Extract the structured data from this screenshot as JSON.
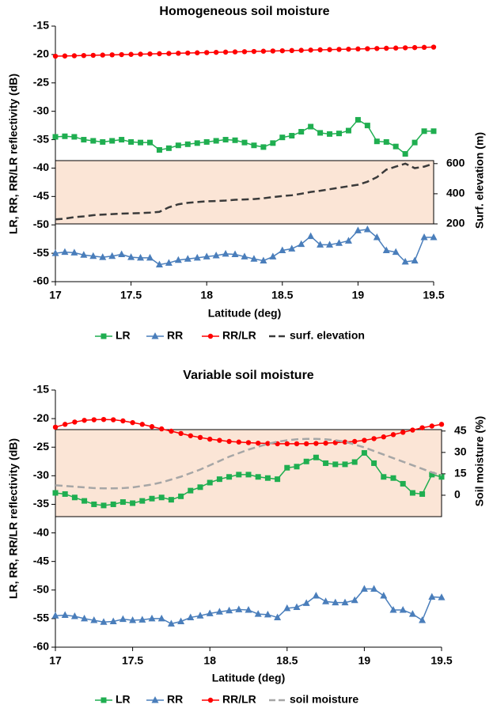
{
  "chart_data": [
    {
      "type": "line",
      "title": "Homogeneous soil moisture",
      "x_label": "Latitude (deg)",
      "y_label": "LR, RR, RR/LR reflectivity (dB)",
      "y2_label": "Surf. elevation (m)",
      "x": [
        17,
        17.0625,
        17.125,
        17.1875,
        17.25,
        17.3125,
        17.375,
        17.4375,
        17.5,
        17.5625,
        17.625,
        17.6875,
        17.75,
        17.8125,
        17.875,
        17.9375,
        18,
        18.0625,
        18.125,
        18.1875,
        18.25,
        18.3125,
        18.375,
        18.4375,
        18.5,
        18.5625,
        18.625,
        18.6875,
        18.75,
        18.8125,
        18.875,
        18.9375,
        19,
        19.0625,
        19.125,
        19.1875,
        19.25,
        19.3125,
        19.375,
        19.4375,
        19.5
      ],
      "xlim": [
        17,
        19.5
      ],
      "xticks": [
        17,
        17.5,
        18,
        18.5,
        19,
        19.5
      ],
      "ylim": [
        -60,
        -15
      ],
      "yticks": [
        -15,
        -20,
        -25,
        -30,
        -35,
        -40,
        -45,
        -50,
        -55,
        -60
      ],
      "y2lim": [
        200,
        620
      ],
      "y2ticks": [
        200,
        400,
        600
      ],
      "series": [
        {
          "name": "LR",
          "color": "#1fae50",
          "marker": "square",
          "values": [
            -34.5,
            -34.4,
            -34.5,
            -35,
            -35.2,
            -35.4,
            -35.2,
            -35,
            -35.4,
            -35.5,
            -35.5,
            -36.8,
            -36.5,
            -36,
            -35.8,
            -35.6,
            -35.4,
            -35.2,
            -35,
            -35.1,
            -35.5,
            -36,
            -36.3,
            -35.6,
            -34.6,
            -34.3,
            -33.6,
            -32.7,
            -33.8,
            -34,
            -33.9,
            -33.4,
            -31.5,
            -32.5,
            -35.3,
            -35.4,
            -36.2,
            -37.5,
            -35.5,
            -33.5,
            -33.5
          ]
        },
        {
          "name": "RR",
          "color": "#4a7ebb",
          "marker": "triangle",
          "values": [
            -55,
            -54.8,
            -54.9,
            -55.3,
            -55.5,
            -55.7,
            -55.5,
            -55.2,
            -55.7,
            -55.8,
            -55.8,
            -57,
            -56.7,
            -56.2,
            -56,
            -55.8,
            -55.6,
            -55.4,
            -55.1,
            -55.2,
            -55.6,
            -56,
            -56.3,
            -55.6,
            -54.5,
            -54.2,
            -53.4,
            -52,
            -53.5,
            -53.5,
            -53.2,
            -52.8,
            -51,
            -50.8,
            -52.2,
            -54.5,
            -54.8,
            -56.5,
            -56.3,
            -52.2,
            -52.2
          ]
        },
        {
          "name": "RR/LR",
          "color": "#ff0000",
          "marker": "circle",
          "values": [
            -20.3,
            -20.26,
            -20.22,
            -20.18,
            -20.14,
            -20.1,
            -20.06,
            -20.02,
            -19.98,
            -19.94,
            -19.9,
            -19.86,
            -19.82,
            -19.78,
            -19.74,
            -19.7,
            -19.66,
            -19.62,
            -19.58,
            -19.54,
            -19.5,
            -19.46,
            -19.42,
            -19.38,
            -19.34,
            -19.3,
            -19.26,
            -19.22,
            -19.18,
            -19.14,
            -19.1,
            -19.06,
            -19.02,
            -18.98,
            -18.94,
            -18.9,
            -18.86,
            -18.82,
            -18.78,
            -18.74,
            -18.7
          ]
        },
        {
          "name": "surf. elevation",
          "color": "#3a3a3a",
          "dash": true,
          "axis": "y2",
          "values": [
            230,
            235,
            245,
            250,
            258,
            262,
            265,
            268,
            270,
            272,
            275,
            280,
            310,
            330,
            340,
            345,
            350,
            352,
            355,
            360,
            362,
            365,
            370,
            378,
            385,
            390,
            400,
            412,
            420,
            430,
            440,
            450,
            460,
            480,
            510,
            560,
            580,
            600,
            570,
            580,
            600
          ]
        }
      ]
    },
    {
      "type": "line",
      "title": "Variable soil moisture",
      "x_label": "Latitude (deg)",
      "y_label": "LR, RR, RR/LR reflectivity (dB)",
      "y2_label": "Soil moisture (%)",
      "x": [
        17,
        17.0625,
        17.125,
        17.1875,
        17.25,
        17.3125,
        17.375,
        17.4375,
        17.5,
        17.5625,
        17.625,
        17.6875,
        17.75,
        17.8125,
        17.875,
        17.9375,
        18,
        18.0625,
        18.125,
        18.1875,
        18.25,
        18.3125,
        18.375,
        18.4375,
        18.5,
        18.5625,
        18.625,
        18.6875,
        18.75,
        18.8125,
        18.875,
        18.9375,
        19,
        19.0625,
        19.125,
        19.1875,
        19.25,
        19.3125,
        19.375,
        19.4375,
        19.5
      ],
      "xlim": [
        17,
        19.5
      ],
      "xticks": [
        17,
        17.5,
        18,
        18.5,
        19,
        19.5
      ],
      "ylim": [
        -60,
        -15
      ],
      "yticks": [
        -15,
        -20,
        -25,
        -30,
        -35,
        -40,
        -45,
        -50,
        -55,
        -60
      ],
      "y2lim": [
        -15,
        46
      ],
      "y2ticks": [
        0,
        15,
        30,
        45
      ],
      "series": [
        {
          "name": "LR",
          "color": "#1fae50",
          "marker": "square",
          "values": [
            -33,
            -33.2,
            -33.8,
            -34.4,
            -35,
            -35.2,
            -35,
            -34.6,
            -34.8,
            -34.4,
            -34,
            -33.8,
            -34.2,
            -33.6,
            -32.6,
            -32,
            -31.2,
            -30.6,
            -30.2,
            -29.8,
            -29.8,
            -30.2,
            -30.4,
            -30.6,
            -28.6,
            -28.4,
            -27.5,
            -26.8,
            -27.8,
            -28,
            -28,
            -27.6,
            -26,
            -27.8,
            -30.2,
            -30.4,
            -31.4,
            -33,
            -33.2,
            -29.8,
            -30.2
          ]
        },
        {
          "name": "RR",
          "color": "#4a7ebb",
          "marker": "triangle",
          "values": [
            -54.5,
            -54.4,
            -54.6,
            -55,
            -55.3,
            -55.6,
            -55.5,
            -55.1,
            -55.3,
            -55.2,
            -55,
            -55,
            -55.9,
            -55.5,
            -54.8,
            -54.5,
            -54.1,
            -53.8,
            -53.6,
            -53.4,
            -53.5,
            -54.2,
            -54.3,
            -54.8,
            -53.2,
            -53,
            -52.3,
            -51,
            -52,
            -52.2,
            -52.2,
            -51.8,
            -49.8,
            -49.8,
            -51,
            -53.5,
            -53.5,
            -54.2,
            -55.3,
            -51.2,
            -51.3
          ]
        },
        {
          "name": "RR/LR",
          "color": "#ff0000",
          "marker": "circle",
          "values": [
            -21.5,
            -21,
            -20.6,
            -20.3,
            -20.2,
            -20.15,
            -20.2,
            -20.4,
            -20.7,
            -21,
            -21.4,
            -21.8,
            -22.2,
            -22.6,
            -23,
            -23.3,
            -23.6,
            -23.8,
            -24,
            -24.1,
            -24.2,
            -24.3,
            -24.35,
            -24.4,
            -24.4,
            -24.4,
            -24.4,
            -24.35,
            -24.3,
            -24.2,
            -24.1,
            -24,
            -23.8,
            -23.5,
            -23.2,
            -22.8,
            -22.4,
            -22,
            -21.6,
            -21.3,
            -21
          ]
        },
        {
          "name": "soil moisture",
          "color": "#a6a6a6",
          "dash": true,
          "axis": "y2",
          "values": [
            7,
            6.5,
            6,
            5.5,
            5,
            4.8,
            4.8,
            5,
            5.5,
            6.5,
            7.5,
            9,
            11,
            13,
            15.5,
            18,
            21,
            24,
            27,
            29.5,
            32,
            34,
            36,
            37.5,
            38.5,
            39.2,
            39.5,
            39.5,
            39.2,
            38.5,
            37.5,
            35.5,
            33.5,
            31,
            28.5,
            26,
            23.5,
            21,
            18.5,
            16,
            14
          ]
        }
      ]
    }
  ]
}
